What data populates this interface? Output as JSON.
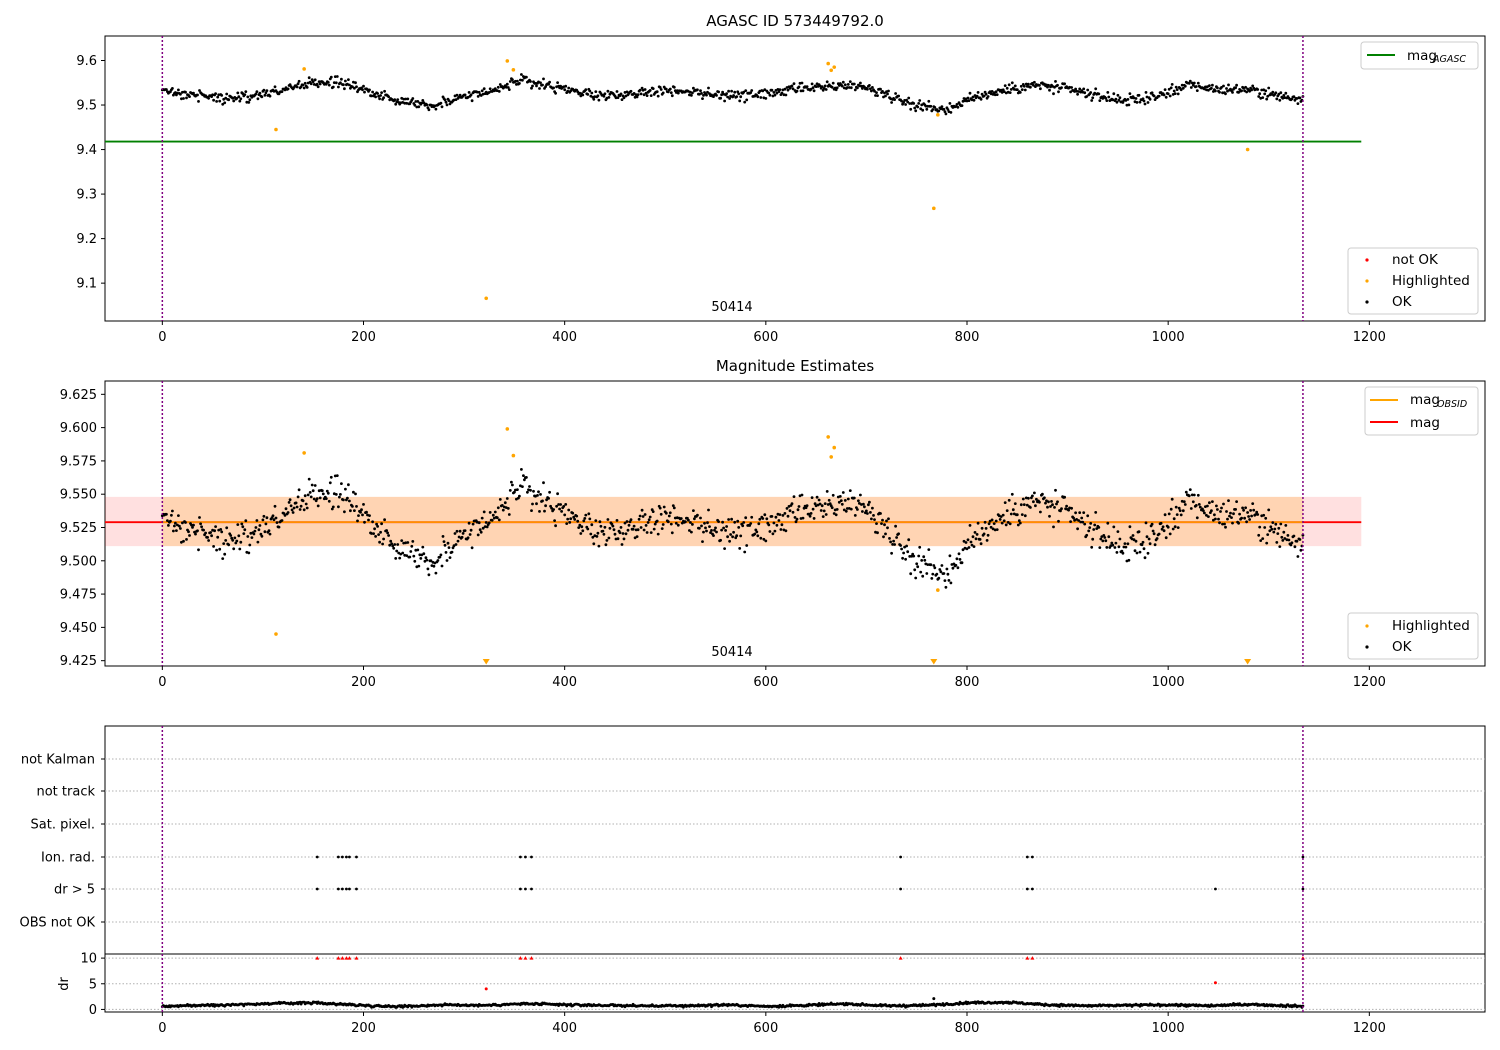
{
  "chart_data": [
    {
      "type": "scatter",
      "title": "AGASC ID 573449792.0",
      "xlim": [
        -57,
        1315
      ],
      "ylim": [
        9.015,
        9.655
      ],
      "xticks": [
        0,
        200,
        400,
        600,
        800,
        1000,
        1200
      ],
      "yticks": [
        9.1,
        9.2,
        9.3,
        9.4,
        9.5,
        9.6
      ],
      "obsid_label": "50414",
      "vlines": [
        0,
        1134
      ],
      "legends": [
        {
          "position": "upper right",
          "entries": [
            {
              "label": "mag",
              "sub": "AGASC",
              "color": "#008000",
              "kind": "line"
            }
          ]
        },
        {
          "position": "lower right",
          "entries": [
            {
              "label": "not OK",
              "color": "#ff0000",
              "kind": "dot"
            },
            {
              "label": "Highlighted",
              "color": "#ffa500",
              "kind": "dot"
            },
            {
              "label": "OK",
              "color": "#000000",
              "kind": "dot"
            }
          ]
        }
      ],
      "hlines": [
        {
          "name": "mag_AGASC",
          "y": 9.418,
          "x": [
            -57,
            1192
          ],
          "color": "#008000"
        }
      ],
      "ok_trend": {
        "x": [
          0,
          30,
          60,
          90,
          120,
          150,
          180,
          210,
          240,
          270,
          300,
          330,
          360,
          390,
          420,
          450,
          480,
          510,
          540,
          570,
          600,
          630,
          660,
          690,
          720,
          750,
          780,
          810,
          840,
          870,
          900,
          930,
          960,
          990,
          1020,
          1050,
          1080,
          1110,
          1134
        ],
        "y": [
          9.53,
          9.525,
          9.515,
          9.52,
          9.535,
          9.55,
          9.55,
          9.525,
          9.51,
          9.5,
          9.52,
          9.535,
          9.555,
          9.54,
          9.525,
          9.52,
          9.53,
          9.535,
          9.525,
          9.52,
          9.525,
          9.535,
          9.54,
          9.545,
          9.525,
          9.5,
          9.49,
          9.52,
          9.535,
          9.545,
          9.535,
          9.52,
          9.51,
          9.52,
          9.545,
          9.535,
          9.535,
          9.52,
          9.515
        ]
      },
      "highlighted": {
        "x": [
          113,
          141,
          322,
          343,
          349,
          662,
          665,
          668,
          767,
          771,
          1079
        ],
        "y": [
          9.445,
          9.581,
          9.066,
          9.599,
          9.579,
          9.593,
          9.578,
          9.585,
          9.268,
          9.478,
          9.4
        ]
      }
    },
    {
      "type": "scatter",
      "title": "Magnitude Estimates",
      "xlim": [
        -57,
        1315
      ],
      "ylim": [
        9.421,
        9.635
      ],
      "xticks": [
        0,
        200,
        400,
        600,
        800,
        1000,
        1200
      ],
      "yticks": [
        9.425,
        9.45,
        9.475,
        9.5,
        9.525,
        9.55,
        9.575,
        9.6,
        9.625
      ],
      "ytick_labels": [
        "9.425",
        "9.450",
        "9.475",
        "9.500",
        "9.525",
        "9.550",
        "9.575",
        "9.600",
        "9.625"
      ],
      "obsid_label": "50414",
      "vlines": [
        0,
        1134
      ],
      "legends": [
        {
          "position": "upper right",
          "entries": [
            {
              "label": "mag",
              "sub": "OBSID",
              "color": "#ffa500",
              "kind": "line"
            },
            {
              "label": "mag",
              "color": "#ff0000",
              "kind": "line"
            }
          ]
        },
        {
          "position": "lower right",
          "entries": [
            {
              "label": "Highlighted",
              "color": "#ffa500",
              "kind": "dot"
            },
            {
              "label": "OK",
              "color": "#000000",
              "kind": "dot"
            }
          ]
        }
      ],
      "mag_line": {
        "y": 9.529,
        "x": [
          -57,
          1192
        ],
        "band": [
          9.511,
          9.548
        ]
      },
      "obsid_band": {
        "x": [
          0,
          1134
        ],
        "y": [
          9.511,
          9.548
        ]
      },
      "ok_trend": {
        "x": [
          0,
          30,
          60,
          90,
          120,
          150,
          180,
          210,
          240,
          270,
          300,
          330,
          360,
          390,
          420,
          450,
          480,
          510,
          540,
          570,
          600,
          630,
          660,
          690,
          720,
          750,
          780,
          810,
          840,
          870,
          900,
          930,
          960,
          990,
          1020,
          1050,
          1080,
          1110,
          1134
        ],
        "y": [
          9.53,
          9.525,
          9.515,
          9.52,
          9.535,
          9.55,
          9.55,
          9.525,
          9.51,
          9.5,
          9.52,
          9.535,
          9.555,
          9.54,
          9.525,
          9.52,
          9.53,
          9.535,
          9.525,
          9.52,
          9.525,
          9.535,
          9.54,
          9.545,
          9.525,
          9.5,
          9.49,
          9.52,
          9.535,
          9.545,
          9.535,
          9.52,
          9.51,
          9.52,
          9.545,
          9.535,
          9.535,
          9.52,
          9.515
        ]
      },
      "highlighted": {
        "x": [
          113,
          141,
          343,
          349,
          662,
          665,
          668,
          771
        ],
        "y": [
          9.445,
          9.581,
          9.599,
          9.579,
          9.593,
          9.578,
          9.585,
          9.478
        ]
      },
      "out_of_range_markers": {
        "x": [
          322,
          767,
          1079
        ],
        "y": [
          9.424,
          9.424,
          9.424
        ]
      }
    },
    {
      "type": "scatter",
      "title": "",
      "xlim": [
        -57,
        1315
      ],
      "xticks": [
        0,
        200,
        400,
        600,
        800,
        1000,
        1200
      ],
      "vlines": [
        0,
        1134
      ],
      "flag_rows": [
        "not Kalman",
        "not track",
        "Sat. pixel.",
        "Ion. rad.",
        "dr > 5",
        "OBS not OK"
      ],
      "flag_points": {
        "Ion. rad.": [
          154,
          175,
          179,
          183,
          186,
          193,
          356,
          361,
          367,
          734,
          860,
          865,
          1134
        ],
        "dr > 5": [
          154,
          175,
          179,
          183,
          186,
          193,
          356,
          361,
          367,
          734,
          860,
          865,
          1047,
          1134
        ]
      },
      "dr_panel": {
        "ylabel": "dr",
        "ylim": [
          -0.5,
          10.8
        ],
        "yticks": [
          0,
          5,
          10
        ],
        "ok_trend": {
          "x": [
            0,
            40,
            80,
            120,
            150,
            180,
            210,
            240,
            280,
            320,
            360,
            400,
            440,
            480,
            520,
            560,
            600,
            640,
            680,
            720,
            760,
            800,
            840,
            880,
            920,
            960,
            1000,
            1040,
            1080,
            1134
          ],
          "y": [
            0.6,
            0.8,
            1.0,
            1.2,
            1.3,
            1.0,
            0.7,
            0.6,
            0.9,
            0.8,
            1.1,
            0.9,
            0.8,
            0.7,
            0.7,
            0.9,
            0.6,
            0.8,
            1.1,
            0.7,
            0.8,
            1.3,
            1.4,
            0.9,
            0.7,
            0.8,
            0.9,
            0.7,
            1.0,
            0.6
          ]
        },
        "clipped_red": [
          154,
          175,
          179,
          183,
          186,
          193,
          356,
          361,
          367,
          734,
          860,
          865,
          1134
        ],
        "other_points": [
          {
            "x": 322,
            "y": 4.0,
            "color": "#ff0000"
          },
          {
            "x": 1047,
            "y": 5.2,
            "color": "#ff0000"
          },
          {
            "x": 767,
            "y": 2.1,
            "color": "#000000"
          }
        ]
      }
    }
  ]
}
